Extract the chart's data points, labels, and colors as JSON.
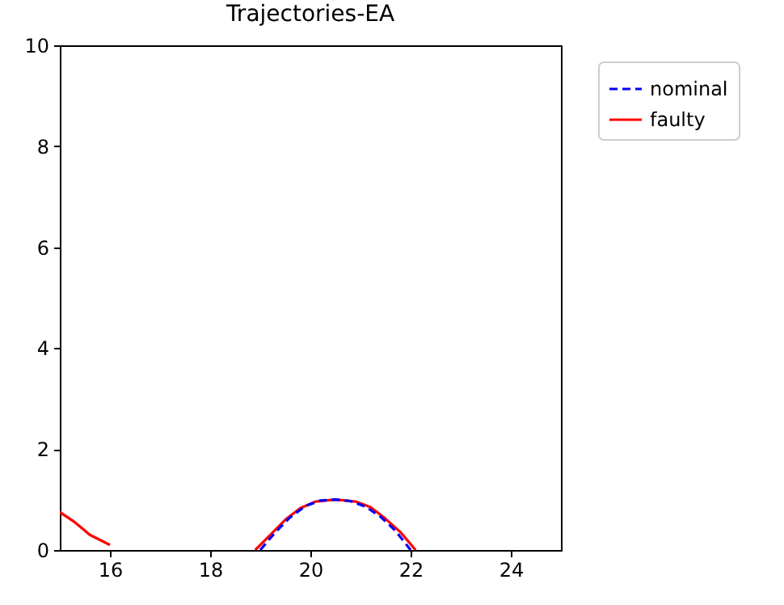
{
  "chart_data": {
    "type": "line",
    "title": "Trajectories-EA",
    "xlim": [
      15,
      25
    ],
    "ylim": [
      0,
      10
    ],
    "xticks": [
      16,
      18,
      20,
      22,
      24
    ],
    "yticks": [
      0,
      2,
      4,
      6,
      8,
      10
    ],
    "grid": false,
    "legend": "top right",
    "series": [
      {
        "name": "faulty",
        "color": "#ff0000",
        "line_style": "solid",
        "x": [
          15,
          15.3,
          15.6,
          15.8,
          16.0,
          17.5,
          18.9,
          19.2,
          19.5,
          19.8,
          20.1,
          20.5,
          20.9,
          21.2,
          21.5,
          21.8,
          22.1
        ],
        "values": [
          0.75,
          0.55,
          0.3,
          0.2,
          0.1,
          null,
          0,
          0.3,
          0.6,
          0.83,
          0.96,
          1.0,
          0.96,
          0.85,
          0.62,
          0.35,
          0
        ]
      },
      {
        "name": "nominal",
        "color": "#0000ff",
        "line_style": "dashed",
        "x": [
          19.0,
          19.3,
          19.6,
          19.9,
          20.2,
          20.5,
          20.8,
          21.1,
          21.4,
          21.7,
          22.0
        ],
        "values": [
          0,
          0.35,
          0.65,
          0.87,
          0.98,
          1.0,
          0.97,
          0.86,
          0.66,
          0.38,
          0
        ]
      }
    ]
  }
}
